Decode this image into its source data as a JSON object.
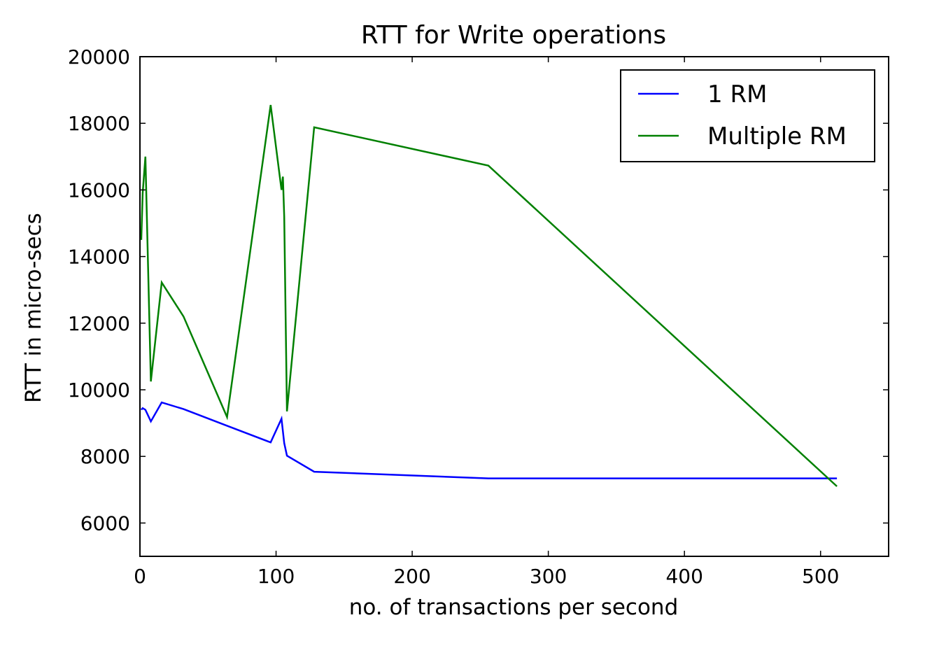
{
  "chart_data": {
    "type": "line",
    "title": "RTT for Write operations",
    "xlabel": "no. of transactions per second",
    "ylabel": "RTT in micro-secs",
    "xlim": [
      0,
      550
    ],
    "ylim": [
      5000,
      20000
    ],
    "x_ticks": [
      0,
      100,
      200,
      300,
      400,
      500
    ],
    "y_ticks": [
      6000,
      8000,
      10000,
      12000,
      14000,
      16000,
      18000,
      20000
    ],
    "grid": false,
    "legend_position": "top-right",
    "series": [
      {
        "name": "1 RM",
        "color": "#0000ff",
        "x": [
          1,
          2,
          4,
          8,
          16,
          32,
          64,
          96,
          104,
          106,
          108,
          128,
          256,
          512
        ],
        "y": [
          9400,
          9450,
          9400,
          9050,
          9620,
          9420,
          8920,
          8420,
          9130,
          8400,
          8020,
          7540,
          7340,
          7340
        ]
      },
      {
        "name": "Multiple RM",
        "color": "#008000",
        "x": [
          1,
          2,
          4,
          8,
          16,
          32,
          64,
          96,
          104,
          105,
          106,
          108,
          128,
          256,
          512
        ],
        "y": [
          14500,
          15900,
          17000,
          10250,
          13220,
          12200,
          9180,
          18550,
          16000,
          16400,
          15200,
          9350,
          17880,
          16730,
          7100
        ]
      }
    ]
  }
}
